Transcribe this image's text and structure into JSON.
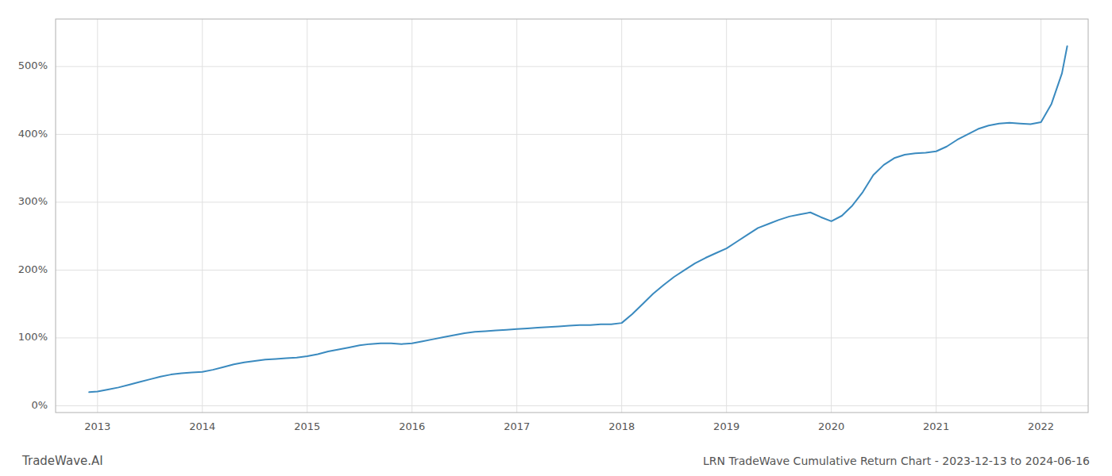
{
  "chart_data": {
    "type": "line",
    "title": "LRN TradeWave Cumulative Return Chart - 2023-12-13 to 2024-06-16",
    "annotations": [
      "TradeWave.AI"
    ],
    "color": "#3a8abf",
    "x": [
      2012.92,
      2013.0,
      2013.1,
      2013.2,
      2013.3,
      2013.4,
      2013.5,
      2013.6,
      2013.7,
      2013.8,
      2013.9,
      2014.0,
      2014.1,
      2014.2,
      2014.3,
      2014.4,
      2014.5,
      2014.6,
      2014.7,
      2014.8,
      2014.9,
      2015.0,
      2015.1,
      2015.2,
      2015.3,
      2015.4,
      2015.5,
      2015.6,
      2015.7,
      2015.8,
      2015.9,
      2016.0,
      2016.1,
      2016.2,
      2016.3,
      2016.4,
      2016.5,
      2016.6,
      2016.7,
      2016.8,
      2016.9,
      2017.0,
      2017.1,
      2017.2,
      2017.3,
      2017.4,
      2017.5,
      2017.6,
      2017.7,
      2017.8,
      2017.9,
      2018.0,
      2018.1,
      2018.2,
      2018.3,
      2018.4,
      2018.5,
      2018.6,
      2018.7,
      2018.8,
      2018.9,
      2019.0,
      2019.1,
      2019.2,
      2019.3,
      2019.4,
      2019.5,
      2019.6,
      2019.7,
      2019.8,
      2019.9,
      2020.0,
      2020.1,
      2020.2,
      2020.3,
      2020.4,
      2020.5,
      2020.6,
      2020.7,
      2020.8,
      2020.9,
      2021.0,
      2021.1,
      2021.2,
      2021.3,
      2021.4,
      2021.5,
      2021.6,
      2021.7,
      2021.8,
      2021.9,
      2022.0,
      2022.1,
      2022.2,
      2022.25
    ],
    "values": [
      20,
      21,
      24,
      27,
      31,
      35,
      39,
      43,
      46,
      48,
      49,
      50,
      53,
      57,
      61,
      64,
      66,
      68,
      69,
      70,
      71,
      73,
      76,
      80,
      83,
      86,
      89,
      91,
      92,
      92,
      91,
      92,
      95,
      98,
      101,
      104,
      107,
      109,
      110,
      111,
      112,
      113,
      114,
      115,
      116,
      117,
      118,
      119,
      119,
      120,
      120,
      122,
      135,
      150,
      165,
      178,
      190,
      200,
      210,
      218,
      225,
      232,
      242,
      252,
      262,
      268,
      274,
      279,
      282,
      285,
      278,
      272,
      280,
      295,
      315,
      340,
      355,
      365,
      370,
      372,
      373,
      375,
      382,
      392,
      400,
      408,
      413,
      416,
      417,
      416,
      415,
      418,
      445,
      490,
      530
    ],
    "xlim": [
      2012.6,
      2022.45
    ],
    "ylim": [
      -10,
      570
    ],
    "xticks": [
      2013,
      2014,
      2015,
      2016,
      2017,
      2018,
      2019,
      2020,
      2021,
      2022
    ],
    "yticks": [
      {
        "value": 0,
        "label": "0%"
      },
      {
        "value": 100,
        "label": "100%"
      },
      {
        "value": 200,
        "label": "200%"
      },
      {
        "value": 300,
        "label": "300%"
      },
      {
        "value": 400,
        "label": "400%"
      },
      {
        "value": 500,
        "label": "500%"
      }
    ],
    "grid": true
  }
}
